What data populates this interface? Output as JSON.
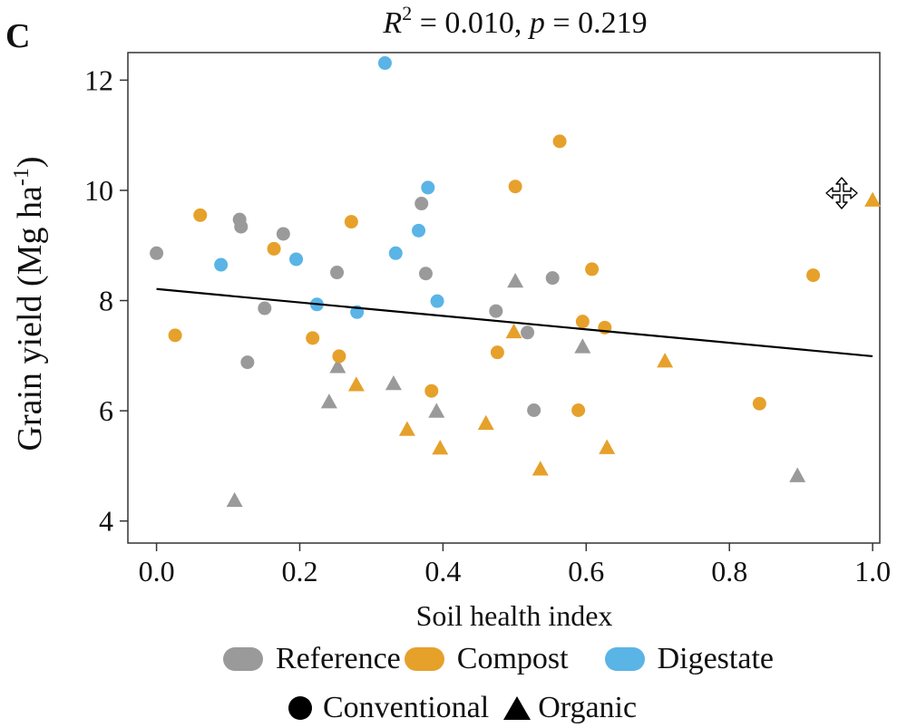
{
  "panel_label": "C",
  "stats": {
    "r2_label": "R",
    "r2_exp": "2",
    "r2_value": " = 0.010, ",
    "p_label": "p",
    "p_value": " = 0.219"
  },
  "colors": {
    "Reference": "#9a9a9a",
    "Compost": "#e6a12b",
    "Digestate": "#5ab4e6",
    "fit_line": "#000000"
  },
  "legend": {
    "groups": [
      {
        "name": "Reference",
        "color_key": "Reference"
      },
      {
        "name": "Compost",
        "color_key": "Compost"
      },
      {
        "name": "Digestate",
        "color_key": "Digestate"
      }
    ],
    "shapes": [
      {
        "name": "Conventional",
        "marker": "circle"
      },
      {
        "name": "Organic",
        "marker": "triangle"
      }
    ]
  },
  "cursor": {
    "icon": "move-cursor-icon"
  },
  "chart_data": {
    "type": "scatter",
    "title": "R2 = 0.010, p = 0.219",
    "xlabel": "Soil health index",
    "ylabel": "Grain yield (Mg ha-1)",
    "ylabel_main": "Grain yield (Mg ha",
    "ylabel_sup": "-1",
    "ylabel_close": ")",
    "xlim": [
      -0.04,
      1.01
    ],
    "ylim": [
      3.6,
      12.5
    ],
    "xticks": [
      0.0,
      0.2,
      0.4,
      0.6,
      0.8,
      1.0
    ],
    "xtick_labels": [
      "0.0",
      "0.2",
      "0.4",
      "0.6",
      "0.8",
      "1.0"
    ],
    "yticks": [
      4,
      6,
      8,
      10,
      12
    ],
    "ytick_labels": [
      "4",
      "6",
      "8",
      "10",
      "12"
    ],
    "grid": false,
    "fit_line": {
      "x": [
        0.0,
        1.0
      ],
      "y": [
        8.21,
        6.99
      ]
    },
    "points": [
      {
        "x": 0.0,
        "y": 8.86,
        "group": "Reference",
        "system": "Conventional"
      },
      {
        "x": 0.116,
        "y": 9.47,
        "group": "Reference",
        "system": "Conventional"
      },
      {
        "x": 0.118,
        "y": 9.34,
        "group": "Reference",
        "system": "Conventional"
      },
      {
        "x": 0.127,
        "y": 6.88,
        "group": "Reference",
        "system": "Conventional"
      },
      {
        "x": 0.151,
        "y": 7.86,
        "group": "Reference",
        "system": "Conventional"
      },
      {
        "x": 0.177,
        "y": 9.21,
        "group": "Reference",
        "system": "Conventional"
      },
      {
        "x": 0.252,
        "y": 8.51,
        "group": "Reference",
        "system": "Conventional"
      },
      {
        "x": 0.37,
        "y": 9.76,
        "group": "Reference",
        "system": "Conventional"
      },
      {
        "x": 0.376,
        "y": 8.49,
        "group": "Reference",
        "system": "Conventional"
      },
      {
        "x": 0.474,
        "y": 7.81,
        "group": "Reference",
        "system": "Conventional"
      },
      {
        "x": 0.518,
        "y": 7.42,
        "group": "Reference",
        "system": "Conventional"
      },
      {
        "x": 0.527,
        "y": 6.01,
        "group": "Reference",
        "system": "Conventional"
      },
      {
        "x": 0.553,
        "y": 8.41,
        "group": "Reference",
        "system": "Conventional"
      },
      {
        "x": 0.109,
        "y": 4.37,
        "group": "Reference",
        "system": "Organic"
      },
      {
        "x": 0.241,
        "y": 6.16,
        "group": "Reference",
        "system": "Organic"
      },
      {
        "x": 0.253,
        "y": 6.8,
        "group": "Reference",
        "system": "Organic"
      },
      {
        "x": 0.331,
        "y": 6.49,
        "group": "Reference",
        "system": "Organic"
      },
      {
        "x": 0.391,
        "y": 5.99,
        "group": "Reference",
        "system": "Organic"
      },
      {
        "x": 0.501,
        "y": 8.35,
        "group": "Reference",
        "system": "Organic"
      },
      {
        "x": 0.595,
        "y": 7.16,
        "group": "Reference",
        "system": "Organic"
      },
      {
        "x": 0.895,
        "y": 4.82,
        "group": "Reference",
        "system": "Organic"
      },
      {
        "x": 0.026,
        "y": 7.37,
        "group": "Compost",
        "system": "Conventional"
      },
      {
        "x": 0.061,
        "y": 9.55,
        "group": "Compost",
        "system": "Conventional"
      },
      {
        "x": 0.164,
        "y": 8.94,
        "group": "Compost",
        "system": "Conventional"
      },
      {
        "x": 0.218,
        "y": 7.32,
        "group": "Compost",
        "system": "Conventional"
      },
      {
        "x": 0.255,
        "y": 6.99,
        "group": "Compost",
        "system": "Conventional"
      },
      {
        "x": 0.272,
        "y": 9.43,
        "group": "Compost",
        "system": "Conventional"
      },
      {
        "x": 0.384,
        "y": 6.36,
        "group": "Compost",
        "system": "Conventional"
      },
      {
        "x": 0.476,
        "y": 7.06,
        "group": "Compost",
        "system": "Conventional"
      },
      {
        "x": 0.501,
        "y": 10.07,
        "group": "Compost",
        "system": "Conventional"
      },
      {
        "x": 0.563,
        "y": 10.89,
        "group": "Compost",
        "system": "Conventional"
      },
      {
        "x": 0.589,
        "y": 6.01,
        "group": "Compost",
        "system": "Conventional"
      },
      {
        "x": 0.595,
        "y": 7.62,
        "group": "Compost",
        "system": "Conventional"
      },
      {
        "x": 0.608,
        "y": 8.57,
        "group": "Compost",
        "system": "Conventional"
      },
      {
        "x": 0.626,
        "y": 7.51,
        "group": "Compost",
        "system": "Conventional"
      },
      {
        "x": 0.842,
        "y": 6.13,
        "group": "Compost",
        "system": "Conventional"
      },
      {
        "x": 0.917,
        "y": 8.46,
        "group": "Compost",
        "system": "Conventional"
      },
      {
        "x": 0.279,
        "y": 6.47,
        "group": "Compost",
        "system": "Organic"
      },
      {
        "x": 0.35,
        "y": 5.66,
        "group": "Compost",
        "system": "Organic"
      },
      {
        "x": 0.396,
        "y": 5.32,
        "group": "Compost",
        "system": "Organic"
      },
      {
        "x": 0.46,
        "y": 5.77,
        "group": "Compost",
        "system": "Organic"
      },
      {
        "x": 0.499,
        "y": 7.43,
        "group": "Compost",
        "system": "Organic"
      },
      {
        "x": 0.536,
        "y": 4.94,
        "group": "Compost",
        "system": "Organic"
      },
      {
        "x": 0.629,
        "y": 5.33,
        "group": "Compost",
        "system": "Organic"
      },
      {
        "x": 0.71,
        "y": 6.9,
        "group": "Compost",
        "system": "Organic"
      },
      {
        "x": 1.0,
        "y": 9.82,
        "group": "Compost",
        "system": "Organic"
      },
      {
        "x": 0.09,
        "y": 8.65,
        "group": "Digestate",
        "system": "Conventional"
      },
      {
        "x": 0.195,
        "y": 8.75,
        "group": "Digestate",
        "system": "Conventional"
      },
      {
        "x": 0.224,
        "y": 7.93,
        "group": "Digestate",
        "system": "Conventional"
      },
      {
        "x": 0.28,
        "y": 7.79,
        "group": "Digestate",
        "system": "Conventional"
      },
      {
        "x": 0.319,
        "y": 12.31,
        "group": "Digestate",
        "system": "Conventional"
      },
      {
        "x": 0.334,
        "y": 8.86,
        "group": "Digestate",
        "system": "Conventional"
      },
      {
        "x": 0.366,
        "y": 9.27,
        "group": "Digestate",
        "system": "Conventional"
      },
      {
        "x": 0.379,
        "y": 10.05,
        "group": "Digestate",
        "system": "Conventional"
      },
      {
        "x": 0.392,
        "y": 7.99,
        "group": "Digestate",
        "system": "Conventional"
      }
    ]
  }
}
